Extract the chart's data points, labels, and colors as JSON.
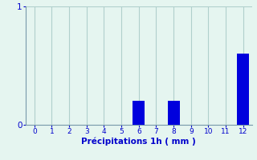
{
  "hours": [
    0,
    1,
    2,
    3,
    4,
    5,
    6,
    7,
    8,
    9,
    10,
    11,
    12
  ],
  "precipitation": [
    0,
    0,
    0,
    0,
    0,
    0,
    0.2,
    0,
    0.2,
    0,
    0,
    0,
    0.6
  ],
  "bar_color": "#0000dd",
  "bg_color": "#e5f5f0",
  "grid_color": "#b0d0cc",
  "axis_color": "#7799aa",
  "text_color": "#0000cc",
  "xlabel": "Précipitations 1h ( mm )",
  "ylim": [
    0,
    1.0
  ],
  "xlim": [
    -0.5,
    12.5
  ],
  "yticks": [
    0,
    1
  ],
  "xticks": [
    0,
    1,
    2,
    3,
    4,
    5,
    6,
    7,
    8,
    9,
    10,
    11,
    12
  ],
  "bar_width": 0.7,
  "xlabel_fontsize": 7.5,
  "tick_fontsize": 6.5,
  "ytick_fontsize": 7.5
}
